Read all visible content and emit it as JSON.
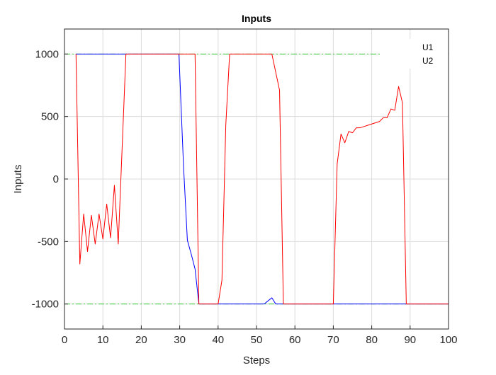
{
  "chart_data": {
    "type": "line",
    "title": "Inputs",
    "xlabel": "Steps",
    "ylabel": "Inputs",
    "xlim": [
      0,
      100
    ],
    "ylim": [
      -1200,
      1200
    ],
    "xticks": [
      0,
      10,
      20,
      30,
      40,
      50,
      60,
      70,
      80,
      90,
      100
    ],
    "yticks": [
      -1000,
      -500,
      0,
      500,
      1000
    ],
    "grid": true,
    "legend": {
      "location": "top-right"
    },
    "series": [
      {
        "name": "U1",
        "color": "#0000ff",
        "points": [
          [
            3,
            1000
          ],
          [
            4,
            1000
          ],
          [
            5,
            1000
          ],
          [
            10,
            1000
          ],
          [
            15,
            1000
          ],
          [
            20,
            1000
          ],
          [
            25,
            1000
          ],
          [
            29.8,
            1000
          ],
          [
            31,
            100
          ],
          [
            32,
            -490
          ],
          [
            33,
            -600
          ],
          [
            34,
            -720
          ],
          [
            35,
            -1000
          ],
          [
            40,
            -1000
          ],
          [
            45,
            -1000
          ],
          [
            50,
            -1000
          ],
          [
            52,
            -1000
          ],
          [
            54,
            -950
          ],
          [
            55,
            -1000
          ],
          [
            60,
            -1000
          ],
          [
            70,
            -1000
          ],
          [
            80,
            -1000
          ],
          [
            89,
            -1000
          ],
          [
            100,
            -1000
          ]
        ]
      },
      {
        "name": "U2",
        "color": "#ff0000",
        "points": [
          [
            3,
            1000
          ],
          [
            4,
            -680
          ],
          [
            5,
            -280
          ],
          [
            6,
            -580
          ],
          [
            7,
            -290
          ],
          [
            8,
            -520
          ],
          [
            9,
            -280
          ],
          [
            10,
            -480
          ],
          [
            11,
            -200
          ],
          [
            12,
            -470
          ],
          [
            13,
            -50
          ],
          [
            14,
            -520
          ],
          [
            16,
            1000
          ],
          [
            20,
            1000
          ],
          [
            25,
            1000
          ],
          [
            30,
            1000
          ],
          [
            34,
            1000
          ],
          [
            35,
            -1000
          ],
          [
            40,
            -1000
          ],
          [
            41,
            -810
          ],
          [
            42,
            430
          ],
          [
            43,
            1000
          ],
          [
            45,
            1000
          ],
          [
            50,
            1000
          ],
          [
            54,
            1000
          ],
          [
            56,
            710
          ],
          [
            57,
            -1000
          ],
          [
            60,
            -1000
          ],
          [
            65,
            -1000
          ],
          [
            70,
            -1000
          ],
          [
            71,
            120
          ],
          [
            72,
            360
          ],
          [
            73,
            290
          ],
          [
            74,
            380
          ],
          [
            75,
            370
          ],
          [
            76,
            410
          ],
          [
            77,
            410
          ],
          [
            78,
            420
          ],
          [
            79,
            430
          ],
          [
            80,
            440
          ],
          [
            81,
            450
          ],
          [
            82,
            460
          ],
          [
            83,
            490
          ],
          [
            84,
            490
          ],
          [
            85,
            560
          ],
          [
            86,
            550
          ],
          [
            87,
            740
          ],
          [
            88,
            610
          ],
          [
            89,
            -1000
          ],
          [
            95,
            -1000
          ],
          [
            100,
            -1000
          ]
        ]
      }
    ],
    "reference_lines": [
      {
        "y": 1000,
        "color": "#33cc33",
        "style": "dash-dot"
      },
      {
        "y": -1000,
        "color": "#33cc33",
        "style": "dash-dot"
      }
    ]
  }
}
